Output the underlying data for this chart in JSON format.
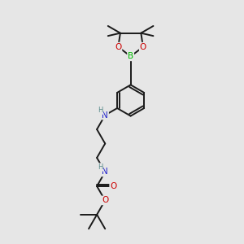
{
  "bg_color": "#e6e6e6",
  "bond_color": "#1a1a1a",
  "bond_width": 1.4,
  "N_color": "#2222cc",
  "O_color": "#cc0000",
  "B_color": "#00bb00",
  "H_color": "#558888",
  "font_size": 7.5,
  "font_size_small": 6.0,
  "xlim": [
    0,
    10
  ],
  "ylim": [
    0,
    14
  ]
}
